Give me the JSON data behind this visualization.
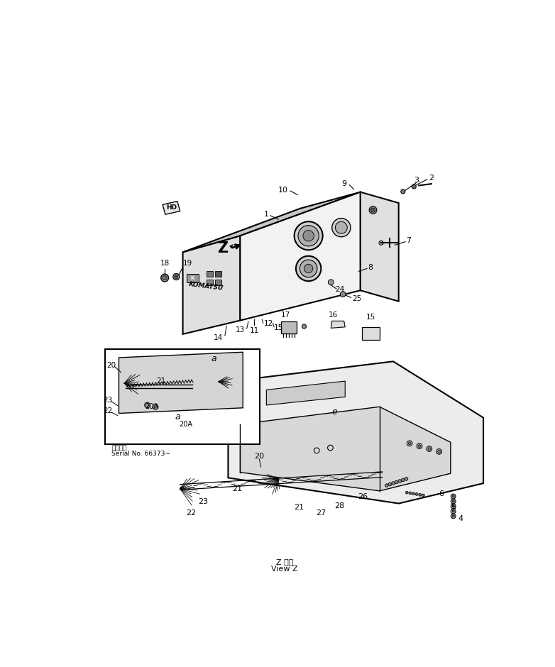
{
  "bg_color": "#ffffff",
  "fig_width": 7.82,
  "fig_height": 9.4,
  "serial_text_line1": "適用号機",
  "serial_text_line2": "Serial No. 66373~",
  "view_z_line1": "Z 方向",
  "view_z_line2": "View Z"
}
